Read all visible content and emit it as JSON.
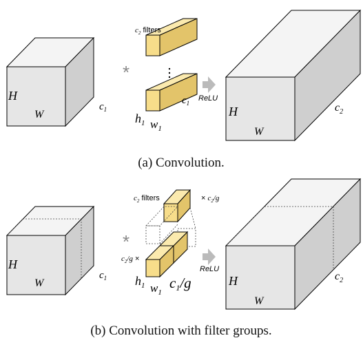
{
  "panel_a": {
    "caption": "(a) Convolution.",
    "input_labels": {
      "height": "H",
      "width": "W",
      "channels": "c1"
    },
    "operator": "*",
    "filter_labels": {
      "count": "c2 filters",
      "height": "h1",
      "width": "w1",
      "depth": "c1"
    },
    "activation": "ReLU",
    "output_labels": {
      "height": "H",
      "width": "W",
      "channels": "c2"
    }
  },
  "panel_b": {
    "caption": "(b) Convolution with filter groups.",
    "input_labels": {
      "height": "H",
      "width": "W",
      "channels": "c1"
    },
    "operator": "*",
    "filter_labels": {
      "count": "c2 filters",
      "group_mult_top": "× c2/g",
      "group_mult_left": "c2/g ×",
      "height": "h1",
      "width": "w1",
      "depth": "c1/g"
    },
    "activation": "ReLU",
    "output_labels": {
      "height": "H",
      "width": "W",
      "channels": "c2"
    }
  },
  "colors": {
    "block_front": "#e6e6e6",
    "block_top": "#f4f4f4",
    "block_side": "#cfcfcf",
    "filter_front": "#f7dd8a",
    "filter_top": "#fbeaae",
    "filter_side": "#e3c46a",
    "arrow": "#bbbbbb",
    "operator": "#888888"
  }
}
